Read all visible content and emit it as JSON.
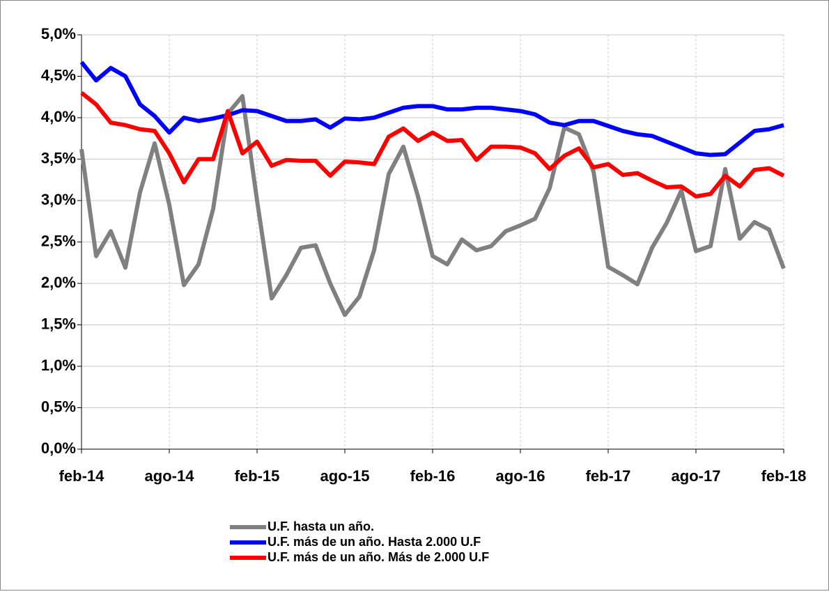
{
  "chart_data": {
    "type": "line",
    "categories": [
      "feb-14",
      null,
      null,
      null,
      null,
      null,
      "ago-14",
      null,
      null,
      null,
      null,
      null,
      "feb-15",
      null,
      null,
      null,
      null,
      null,
      "ago-15",
      null,
      null,
      null,
      null,
      null,
      "feb-16",
      null,
      null,
      null,
      null,
      null,
      "ago-16",
      null,
      null,
      null,
      null,
      null,
      "feb-17",
      null,
      null,
      null,
      null,
      null,
      "ago-17",
      null,
      null,
      null,
      null,
      null,
      "feb-18"
    ],
    "series": [
      {
        "name": "U.F. hasta un año.",
        "color": "#808080",
        "values": [
          3.62,
          2.33,
          2.63,
          2.19,
          3.1,
          3.69,
          2.95,
          1.98,
          2.23,
          2.9,
          4.05,
          4.26,
          3.0,
          1.82,
          2.1,
          2.43,
          2.46,
          2.0,
          1.62,
          1.84,
          2.4,
          3.32,
          3.65,
          3.05,
          2.33,
          2.23,
          2.53,
          2.4,
          2.45,
          2.63,
          2.7,
          2.78,
          3.15,
          3.88,
          3.8,
          3.35,
          2.2,
          2.1,
          1.99,
          2.43,
          2.73,
          3.12,
          2.39,
          2.45,
          3.38,
          2.54,
          2.74,
          2.65,
          2.18
        ]
      },
      {
        "name": "U.F. más de un año. Hasta 2.000 U.F",
        "color": "#0000ff",
        "values": [
          4.67,
          4.45,
          4.6,
          4.5,
          4.16,
          4.02,
          3.82,
          4.0,
          3.96,
          3.99,
          4.03,
          4.09,
          4.08,
          4.02,
          3.96,
          3.96,
          3.98,
          3.88,
          3.99,
          3.98,
          4.0,
          4.06,
          4.12,
          4.14,
          4.14,
          4.1,
          4.1,
          4.12,
          4.12,
          4.1,
          4.08,
          4.04,
          3.94,
          3.91,
          3.96,
          3.96,
          3.9,
          3.84,
          3.8,
          3.78,
          3.71,
          3.64,
          3.57,
          3.55,
          3.56,
          3.7,
          3.84,
          3.86,
          3.91
        ]
      },
      {
        "name": "U.F. más de un año. Más de 2.000 U.F",
        "color": "#ff0000",
        "values": [
          4.3,
          4.16,
          3.94,
          3.91,
          3.86,
          3.84,
          3.57,
          3.22,
          3.5,
          3.5,
          4.08,
          3.57,
          3.71,
          3.42,
          3.49,
          3.48,
          3.48,
          3.3,
          3.47,
          3.46,
          3.44,
          3.77,
          3.87,
          3.72,
          3.82,
          3.72,
          3.73,
          3.49,
          3.65,
          3.65,
          3.64,
          3.57,
          3.38,
          3.54,
          3.63,
          3.4,
          3.44,
          3.31,
          3.33,
          3.24,
          3.16,
          3.17,
          3.05,
          3.08,
          3.3,
          3.17,
          3.37,
          3.39,
          3.3
        ]
      }
    ],
    "ylim": [
      0,
      5
    ],
    "yticks": [
      {
        "value": 0,
        "label": "0,0%"
      },
      {
        "value": 0.5,
        "label": "0,5%"
      },
      {
        "value": 1,
        "label": "1,0%"
      },
      {
        "value": 1.5,
        "label": "1,5%"
      },
      {
        "value": 2,
        "label": "2,0%"
      },
      {
        "value": 2.5,
        "label": "2,5%"
      },
      {
        "value": 3,
        "label": "3,0%"
      },
      {
        "value": 3.5,
        "label": "3,5%"
      },
      {
        "value": 4,
        "label": "4,0%"
      },
      {
        "value": 4.5,
        "label": "4,5%"
      },
      {
        "value": 5,
        "label": "5,0%"
      }
    ],
    "grid": true
  }
}
